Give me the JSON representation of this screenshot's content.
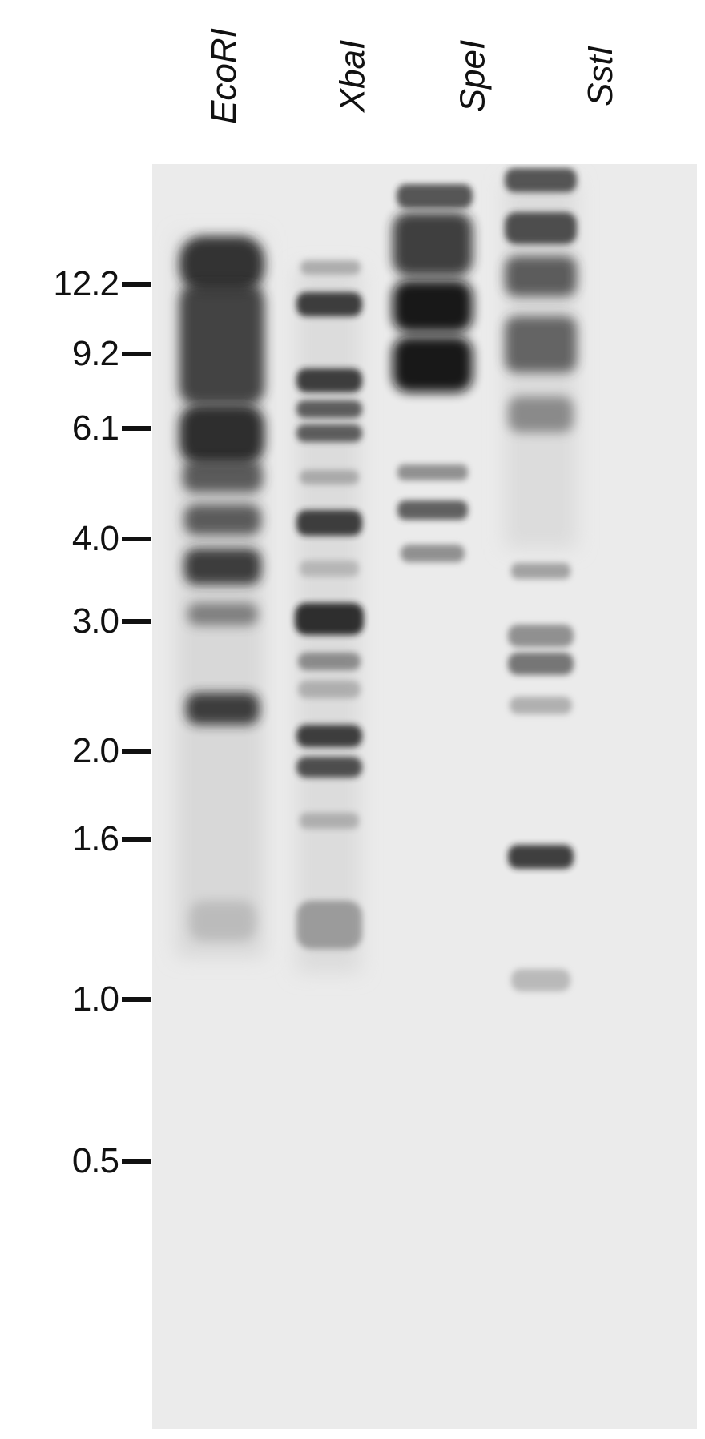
{
  "lanes": [
    {
      "label": "EcoRI"
    },
    {
      "label": "XbaI"
    },
    {
      "label": "SpeI"
    },
    {
      "label": "SstI"
    }
  ],
  "size_markers_kb": [
    "12.2",
    "9.2",
    "6.1",
    "4.0",
    "3.0",
    "2.0",
    "1.6",
    "1.0",
    "0.5"
  ],
  "colors": {
    "gel_background": "#eaeaea",
    "band": "#1a1a1a",
    "label": "#111111"
  }
}
